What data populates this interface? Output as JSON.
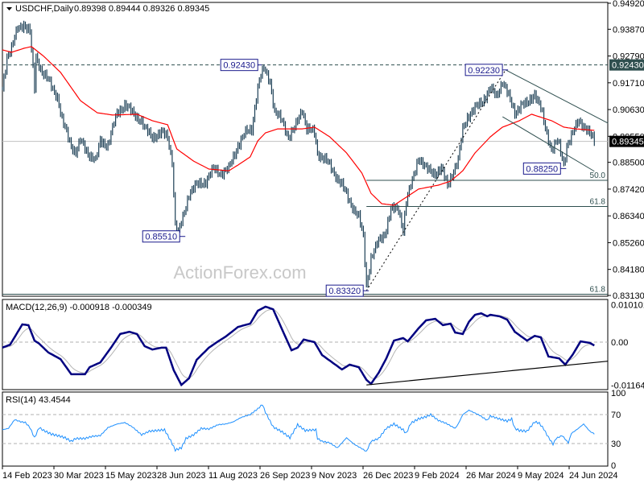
{
  "header": {
    "symbol": "USDCHF,Daily",
    "ohlc": "0.89398 0.89444 0.89326 0.89345",
    "macd_title": "MACD(12,26,9) -0.000918 -0.000349",
    "rsi_title": "RSI(14) 43.4544"
  },
  "watermark": "ActionForex.com",
  "colors": {
    "bars": "#1c3f55",
    "ma": "#ff0000",
    "macd": "#000080",
    "signal": "#b4b4b4",
    "rsi": "#1e90ff",
    "label_border": "#1a1a8c",
    "highlight_bg": "#2f4f4f"
  },
  "chart_data": [
    {
      "type": "ohlc",
      "title": "USDCHF,Daily",
      "ylim": [
        0.8313,
        0.9492
      ],
      "y_ticks": [
        "0.94920",
        "0.93870",
        "0.92790",
        "0.91710",
        "0.90630",
        "0.89550",
        "0.88500",
        "0.87420",
        "0.86340",
        "0.85260",
        "0.84180",
        "0.83130"
      ],
      "x_ticks": [
        "14 Feb 2023",
        "30 Mar 2023",
        "15 May 2023",
        "28 Jun 2023",
        "11 Aug 2023",
        "26 Sep 2023",
        "9 Nov 2023",
        "26 Dec 2023",
        "9 Feb 2024",
        "26 Mar 2024",
        "9 May 2024",
        "24 Jun 2024"
      ],
      "bar_count": 388,
      "close_by_bar": [
        [
          0,
          0.9148
        ],
        [
          3,
          0.9278
        ],
        [
          6,
          0.931
        ],
        [
          10,
          0.9391
        ],
        [
          14,
          0.9408
        ],
        [
          18,
          0.9375
        ],
        [
          21,
          0.9148
        ],
        [
          22,
          0.9278
        ],
        [
          26,
          0.9213
        ],
        [
          30,
          0.918
        ],
        [
          36,
          0.9115
        ],
        [
          39,
          0.9018
        ],
        [
          45,
          0.892
        ],
        [
          48,
          0.8888
        ],
        [
          51,
          0.8937
        ],
        [
          56,
          0.8888
        ],
        [
          61,
          0.8855
        ],
        [
          64,
          0.8937
        ],
        [
          69,
          0.892
        ],
        [
          75,
          0.905
        ],
        [
          80,
          0.9083
        ],
        [
          85,
          0.905
        ],
        [
          91,
          0.9018
        ],
        [
          93,
          0.8985
        ],
        [
          98,
          0.8953
        ],
        [
          104,
          0.8969
        ],
        [
          108,
          0.8953
        ],
        [
          111,
          0.8855
        ],
        [
          113,
          0.8596
        ],
        [
          115,
          0.8563
        ],
        [
          118,
          0.8628
        ],
        [
          122,
          0.8725
        ],
        [
          127,
          0.8758
        ],
        [
          133,
          0.8774
        ],
        [
          138,
          0.8823
        ],
        [
          143,
          0.8807
        ],
        [
          148,
          0.8823
        ],
        [
          154,
          0.892
        ],
        [
          159,
          0.8969
        ],
        [
          163,
          0.8985
        ],
        [
          166,
          0.9115
        ],
        [
          168,
          0.918
        ],
        [
          171,
          0.9229
        ],
        [
          175,
          0.918
        ],
        [
          178,
          0.905
        ],
        [
          183,
          0.9018
        ],
        [
          187,
          0.8953
        ],
        [
          191,
          0.8985
        ],
        [
          196,
          0.9067
        ],
        [
          199,
          0.8985
        ],
        [
          204,
          0.8969
        ],
        [
          206,
          0.8888
        ],
        [
          212,
          0.8855
        ],
        [
          217,
          0.8807
        ],
        [
          222,
          0.8758
        ],
        [
          227,
          0.8693
        ],
        [
          233,
          0.8628
        ],
        [
          236,
          0.8547
        ],
        [
          238,
          0.8352
        ],
        [
          241,
          0.8466
        ],
        [
          246,
          0.8531
        ],
        [
          250,
          0.8563
        ],
        [
          254,
          0.866
        ],
        [
          259,
          0.866
        ],
        [
          262,
          0.8579
        ],
        [
          264,
          0.8693
        ],
        [
          268,
          0.8774
        ],
        [
          272,
          0.8872
        ],
        [
          277,
          0.8823
        ],
        [
          283,
          0.8807
        ],
        [
          287,
          0.8823
        ],
        [
          291,
          0.8758
        ],
        [
          293,
          0.879
        ],
        [
          298,
          0.8855
        ],
        [
          301,
          0.8985
        ],
        [
          304,
          0.9034
        ],
        [
          309,
          0.9067
        ],
        [
          314,
          0.9099
        ],
        [
          319,
          0.9148
        ],
        [
          323,
          0.9115
        ],
        [
          327,
          0.918
        ],
        [
          331,
          0.9115
        ],
        [
          335,
          0.905
        ],
        [
          339,
          0.9083
        ],
        [
          343,
          0.9083
        ],
        [
          348,
          0.9131
        ],
        [
          352,
          0.9067
        ],
        [
          355,
          0.8985
        ],
        [
          359,
          0.8904
        ],
        [
          363,
          0.8937
        ],
        [
          367,
          0.8839
        ],
        [
          369,
          0.892
        ],
        [
          373,
          0.8969
        ],
        [
          377,
          0.9018
        ],
        [
          382,
          0.8985
        ],
        [
          385,
          0.8953
        ],
        [
          387,
          0.8935
        ]
      ],
      "moving_average_by_bar": [
        [
          0,
          0.9304
        ],
        [
          6,
          0.9294
        ],
        [
          14,
          0.931
        ],
        [
          19,
          0.9317
        ],
        [
          27,
          0.9278
        ],
        [
          38,
          0.9213
        ],
        [
          51,
          0.9099
        ],
        [
          62,
          0.905
        ],
        [
          72,
          0.9041
        ],
        [
          88,
          0.9044
        ],
        [
          98,
          0.9018
        ],
        [
          108,
          0.9002
        ],
        [
          114,
          0.8904
        ],
        [
          125,
          0.8855
        ],
        [
          135,
          0.8823
        ],
        [
          148,
          0.8816
        ],
        [
          154,
          0.8839
        ],
        [
          162,
          0.8872
        ],
        [
          167,
          0.8937
        ],
        [
          172,
          0.8969
        ],
        [
          180,
          0.8985
        ],
        [
          196,
          0.8985
        ],
        [
          204,
          0.8992
        ],
        [
          214,
          0.8953
        ],
        [
          225,
          0.8888
        ],
        [
          235,
          0.8807
        ],
        [
          241,
          0.8725
        ],
        [
          248,
          0.8683
        ],
        [
          256,
          0.8677
        ],
        [
          264,
          0.8709
        ],
        [
          272,
          0.8742
        ],
        [
          285,
          0.8758
        ],
        [
          293,
          0.8774
        ],
        [
          301,
          0.8816
        ],
        [
          309,
          0.8888
        ],
        [
          319,
          0.8953
        ],
        [
          327,
          0.8992
        ],
        [
          338,
          0.9018
        ],
        [
          346,
          0.9044
        ],
        [
          351,
          0.9034
        ],
        [
          359,
          0.9018
        ],
        [
          367,
          0.8992
        ],
        [
          375,
          0.8985
        ],
        [
          387,
          0.8979
        ]
      ],
      "current_price": "0.89345",
      "resistance_level": "0.92430",
      "swing_labels": [
        {
          "text": "0.92430",
          "bar": 168,
          "price": 0.9243
        },
        {
          "text": "0.85510",
          "bar": 118,
          "price": 0.8551
        },
        {
          "text": "0.83320",
          "bar": 238,
          "price": 0.8332
        },
        {
          "text": "0.92230",
          "bar": 329,
          "price": 0.9223
        },
        {
          "text": "0.88250",
          "bar": 367,
          "price": 0.8825
        }
      ],
      "fib_levels": [
        {
          "label": "50.0",
          "price": 0.87775
        },
        {
          "label": "61.8",
          "price": 0.8672
        },
        {
          "label": "61.8",
          "price": 0.8318
        }
      ],
      "trendlines": [
        {
          "style": "dotted",
          "from": [
            238,
            0.8332
          ],
          "to": [
            329,
            0.9223
          ]
        },
        {
          "style": "solid",
          "from": [
            329,
            0.9223
          ],
          "to": [
            396,
            0.9008
          ]
        },
        {
          "style": "solid",
          "from": [
            327,
            0.9034
          ],
          "to": [
            387,
            0.8814
          ]
        }
      ]
    },
    {
      "type": "line",
      "title": "MACD(12,26,9) -0.000918 -0.000349",
      "ylim": [
        -0.011645,
        0.010101
      ],
      "y_ticks": [
        "0.010101",
        "0.00",
        "-0.011645"
      ],
      "macd_by_bar": [
        [
          0,
          -0.0015
        ],
        [
          5,
          -0.0007
        ],
        [
          13,
          0.0048
        ],
        [
          17,
          0.0046
        ],
        [
          21,
          0.0004
        ],
        [
          24,
          -0.0004
        ],
        [
          30,
          -0.0028
        ],
        [
          38,
          -0.0046
        ],
        [
          45,
          -0.0087
        ],
        [
          51,
          -0.0087
        ],
        [
          54,
          -0.0087
        ],
        [
          57,
          -0.0068
        ],
        [
          64,
          -0.0055
        ],
        [
          71,
          -0.0015
        ],
        [
          77,
          0.0022
        ],
        [
          83,
          0.0028
        ],
        [
          88,
          0.0022
        ],
        [
          93,
          -0.0011
        ],
        [
          98,
          -0.002
        ],
        [
          104,
          -0.0015
        ],
        [
          107,
          -0.0015
        ],
        [
          112,
          -0.0076
        ],
        [
          117,
          -0.0116
        ],
        [
          122,
          -0.0098
        ],
        [
          127,
          -0.0048
        ],
        [
          135,
          -0.0015
        ],
        [
          141,
          0.0002
        ],
        [
          146,
          0.0015
        ],
        [
          154,
          0.0041
        ],
        [
          162,
          0.005
        ],
        [
          167,
          0.0085
        ],
        [
          172,
          0.0096
        ],
        [
          177,
          0.0089
        ],
        [
          183,
          0.0033
        ],
        [
          189,
          -0.0022
        ],
        [
          193,
          -0.0015
        ],
        [
          197,
          0.0007
        ],
        [
          204,
          0.0
        ],
        [
          209,
          -0.0035
        ],
        [
          217,
          -0.0059
        ],
        [
          222,
          -0.0074
        ],
        [
          227,
          -0.0061
        ],
        [
          233,
          -0.0068
        ],
        [
          238,
          -0.0102
        ],
        [
          241,
          -0.0113
        ],
        [
          246,
          -0.0083
        ],
        [
          251,
          -0.0044
        ],
        [
          256,
          0.0004
        ],
        [
          262,
          0.0011
        ],
        [
          265,
          0.0002
        ],
        [
          272,
          0.0037
        ],
        [
          277,
          0.0059
        ],
        [
          283,
          0.0063
        ],
        [
          288,
          0.0046
        ],
        [
          293,
          0.005
        ],
        [
          296,
          0.0026
        ],
        [
          301,
          0.0022
        ],
        [
          305,
          0.0055
        ],
        [
          309,
          0.0074
        ],
        [
          313,
          0.0078
        ],
        [
          317,
          0.007
        ],
        [
          319,
          0.0074
        ],
        [
          325,
          0.007
        ],
        [
          330,
          0.0061
        ],
        [
          335,
          0.0028
        ],
        [
          343,
          0.0004
        ],
        [
          348,
          0.0017
        ],
        [
          352,
          0.0013
        ],
        [
          357,
          -0.0039
        ],
        [
          364,
          -0.0044
        ],
        [
          368,
          -0.0061
        ],
        [
          373,
          -0.0033
        ],
        [
          378,
          0.0002
        ],
        [
          384,
          -0.0002
        ],
        [
          387,
          -0.0009
        ]
      ],
      "signal_period": 9,
      "trendline": {
        "from": [
          238,
          -0.0116
        ],
        "to": [
          395,
          -0.0052
        ]
      }
    },
    {
      "type": "line",
      "title": "RSI(14) 43.4544",
      "ylim": [
        0,
        100
      ],
      "y_ticks": [
        "100",
        "70",
        "30",
        "0"
      ],
      "levels": [
        70,
        30
      ],
      "rsi_by_bar": [
        [
          0,
          49
        ],
        [
          4,
          51
        ],
        [
          8,
          63
        ],
        [
          12,
          60
        ],
        [
          15,
          59
        ],
        [
          18,
          52
        ],
        [
          21,
          38
        ],
        [
          24,
          52
        ],
        [
          27,
          48
        ],
        [
          32,
          43
        ],
        [
          38,
          40
        ],
        [
          41,
          38
        ],
        [
          45,
          33
        ],
        [
          48,
          37
        ],
        [
          54,
          37
        ],
        [
          59,
          40
        ],
        [
          64,
          41
        ],
        [
          69,
          52
        ],
        [
          75,
          57
        ],
        [
          80,
          59
        ],
        [
          85,
          53
        ],
        [
          91,
          42
        ],
        [
          96,
          47
        ],
        [
          101,
          48
        ],
        [
          106,
          49
        ],
        [
          110,
          34
        ],
        [
          113,
          21
        ],
        [
          117,
          24
        ],
        [
          120,
          37
        ],
        [
          125,
          42
        ],
        [
          130,
          51
        ],
        [
          135,
          50
        ],
        [
          141,
          56
        ],
        [
          146,
          57
        ],
        [
          151,
          60
        ],
        [
          156,
          66
        ],
        [
          162,
          70
        ],
        [
          167,
          78
        ],
        [
          170,
          84
        ],
        [
          172,
          73
        ],
        [
          177,
          53
        ],
        [
          183,
          46
        ],
        [
          188,
          38
        ],
        [
          193,
          56
        ],
        [
          198,
          48
        ],
        [
          205,
          49
        ],
        [
          209,
          33
        ],
        [
          206,
          37
        ],
        [
          214,
          31
        ],
        [
          219,
          24
        ],
        [
          225,
          38
        ],
        [
          230,
          29
        ],
        [
          235,
          23
        ],
        [
          238,
          19
        ],
        [
          241,
          33
        ],
        [
          246,
          37
        ],
        [
          251,
          51
        ],
        [
          256,
          57
        ],
        [
          262,
          49
        ],
        [
          264,
          44
        ],
        [
          267,
          58
        ],
        [
          272,
          64
        ],
        [
          277,
          67
        ],
        [
          280,
          70
        ],
        [
          285,
          62
        ],
        [
          290,
          58
        ],
        [
          296,
          51
        ],
        [
          298,
          57
        ],
        [
          301,
          70
        ],
        [
          305,
          76
        ],
        [
          309,
          72
        ],
        [
          312,
          69
        ],
        [
          317,
          62
        ],
        [
          319,
          68
        ],
        [
          325,
          64
        ],
        [
          330,
          61
        ],
        [
          333,
          64
        ],
        [
          335,
          51
        ],
        [
          338,
          48
        ],
        [
          343,
          47
        ],
        [
          348,
          60
        ],
        [
          351,
          58
        ],
        [
          354,
          50
        ],
        [
          356,
          42
        ],
        [
          360,
          29
        ],
        [
          362,
          37
        ],
        [
          366,
          41
        ],
        [
          370,
          31
        ],
        [
          372,
          44
        ],
        [
          376,
          50
        ],
        [
          380,
          57
        ],
        [
          384,
          47
        ],
        [
          387,
          43.45
        ]
      ]
    }
  ]
}
